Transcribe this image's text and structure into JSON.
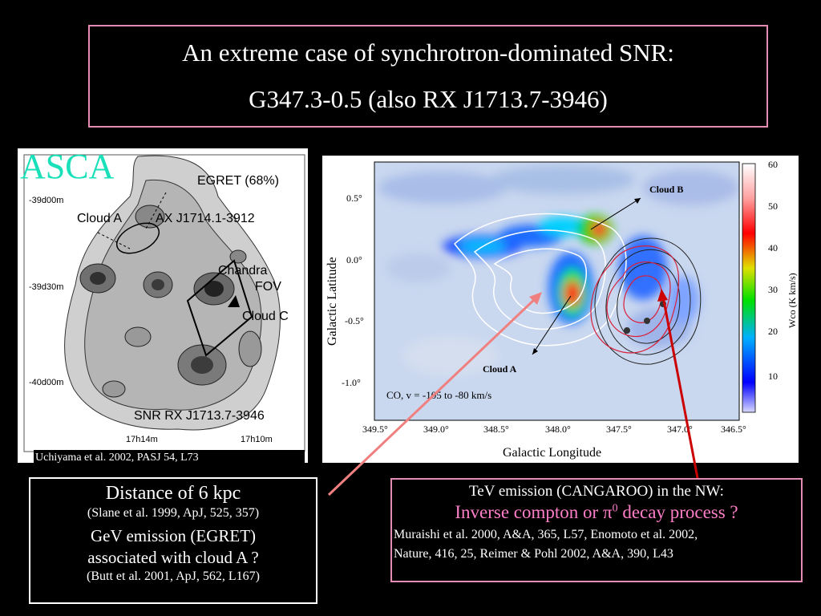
{
  "title": {
    "line1": "An extreme case of synchrotron-dominated SNR:",
    "line2": "G347.3-0.5 (also RX J1713.7-3946)"
  },
  "asca": {
    "label": "ASCA",
    "annotations": {
      "egret": "EGRET (68%)",
      "cloud_a": "Cloud A",
      "ax_source": "AX J1714.1-3912",
      "chandra": "Chandra",
      "fov": "FOV",
      "cloud_c": "Cloud C",
      "snr": "SNR RX J1713.7-3946"
    },
    "dec_ticks": [
      "-39d00m",
      "-39d30m",
      "-40d00m"
    ],
    "ra_ticks": [
      "17h14m",
      "17h10m"
    ],
    "citation": "Uchiyama et al. 2002, PASJ 54, L73"
  },
  "co_map": {
    "ylabel": "Galactic Latitude",
    "xlabel": "Galactic Longitude",
    "y_ticks": [
      "0.5°",
      "0.0°",
      "-0.5°",
      "-1.0°"
    ],
    "x_ticks": [
      "349.5°",
      "349.0°",
      "348.5°",
      "348.0°",
      "347.5°",
      "347.0°",
      "346.5°"
    ],
    "colorbar_label": "Wco (K km/s)",
    "colorbar_ticks": [
      "60",
      "50",
      "40",
      "30",
      "20",
      "10"
    ],
    "cloud_b": "Cloud B",
    "cloud_a": "Cloud A",
    "velocity_note": "CO, v = -105 to -80 km/s"
  },
  "distance_box": {
    "line1": "Distance of 6 kpc",
    "cite1": "(Slane et al. 1999, ApJ, 525, 357)",
    "line2": "GeV emission (EGRET)",
    "line3": "associated with cloud A ?",
    "cite2": "(Butt et al. 2001, ApJ, 562, L167)"
  },
  "tev_box": {
    "line1": "TeV emission (CANGAROO) in the NW:",
    "line2_a": "Inverse compton or ",
    "line2_pi": "π",
    "line2_sup": "0",
    "line2_b": " decay process ?",
    "cite1": "Muraishi et al. 2000, A&A, 365, L57, Enomoto et al. 2002,",
    "cite2": "Nature, 416, 25, Reimer & Pohl 2002, A&A, 390, L43"
  },
  "colors": {
    "title_border": "#e58cb4",
    "asca_label": "#19e0b8",
    "tev_highlight": "#ff7fc8",
    "arrow_pink": "#f08080",
    "arrow_red": "#cc0000"
  }
}
